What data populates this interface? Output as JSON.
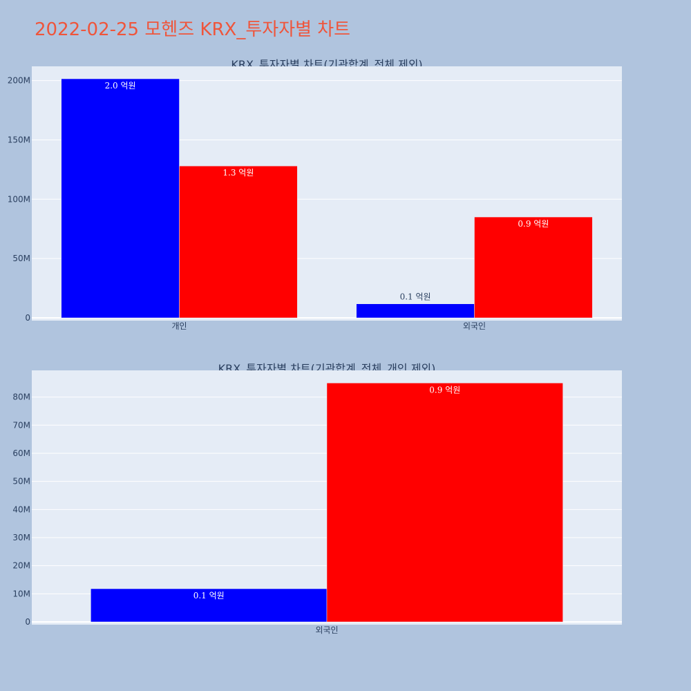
{
  "title": "2022-02-25 모헨즈 KRX_투자자별 차트",
  "chart_data": [
    {
      "type": "bar",
      "title": "KRX_투자자별 차트(기관합계_전체 제외)",
      "categories": [
        "개인",
        "외국인"
      ],
      "series": [
        {
          "color": "#0000ff",
          "values": [
            201500000,
            11800000
          ],
          "labels": [
            "2.0 억원",
            "0.1 억원"
          ]
        },
        {
          "color": "#ff0000",
          "values": [
            128000000,
            85000000
          ],
          "labels": [
            "1.3 억원",
            "0.9 억원"
          ]
        }
      ],
      "ylim": [
        0,
        212000000
      ],
      "yticks": [
        0,
        50000000,
        100000000,
        150000000,
        200000000
      ],
      "ytick_labels": [
        "0",
        "50M",
        "100M",
        "150M",
        "200M"
      ],
      "grid": true
    },
    {
      "type": "bar",
      "title": "KRX_투자자별 차트(기관합계_전체_개인 제외)",
      "categories": [
        "외국인"
      ],
      "series": [
        {
          "color": "#0000ff",
          "values": [
            11800000
          ],
          "labels": [
            "0.1 억원"
          ]
        },
        {
          "color": "#ff0000",
          "values": [
            85000000
          ],
          "labels": [
            "0.9 억원"
          ]
        }
      ],
      "ylim": [
        0,
        89500000
      ],
      "yticks": [
        0,
        10000000,
        20000000,
        30000000,
        40000000,
        50000000,
        60000000,
        70000000,
        80000000
      ],
      "ytick_labels": [
        "0",
        "10M",
        "20M",
        "30M",
        "40M",
        "50M",
        "60M",
        "70M",
        "80M"
      ],
      "grid": true
    }
  ],
  "colors": {
    "page_bg": "#b0c4de",
    "plot_bg": "#e5ecf6",
    "title": "#ef553b",
    "text": "#2a3f5f"
  }
}
